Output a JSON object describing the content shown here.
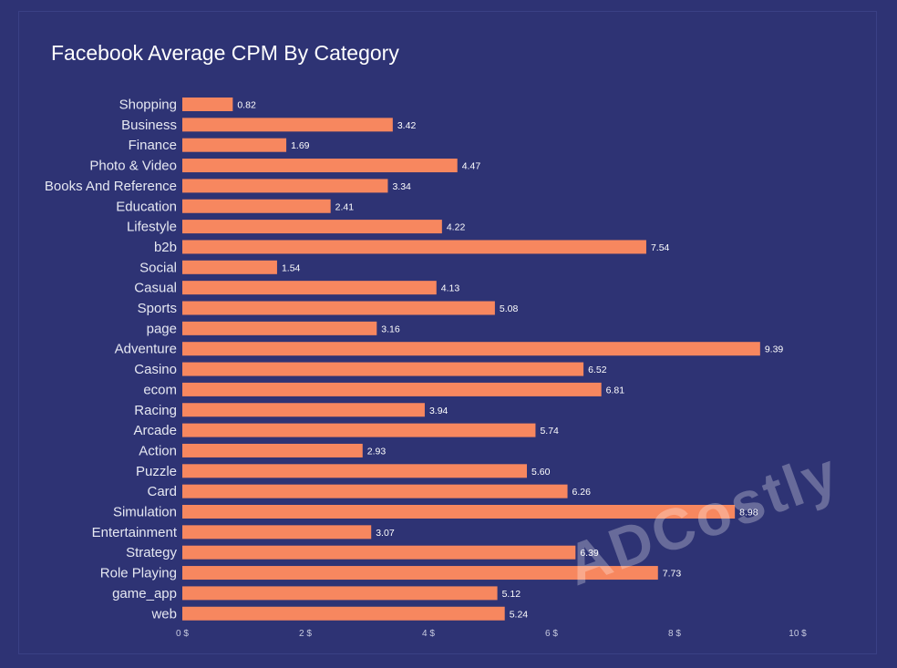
{
  "chart_data": {
    "type": "bar",
    "orientation": "horizontal",
    "title": "Facebook Average CPM By Category",
    "categories": [
      "Shopping",
      "Business",
      "Finance",
      "Photo & Video",
      "Books And Reference",
      "Education",
      "Lifestyle",
      "b2b",
      "Social",
      "Casual",
      "Sports",
      "page",
      "Adventure",
      "Casino",
      "ecom",
      "Racing",
      "Arcade",
      "Action",
      "Puzzle",
      "Card",
      "Simulation",
      "Entertainment",
      "Strategy",
      "Role Playing",
      "game_app",
      "web"
    ],
    "values": [
      0.82,
      3.42,
      1.69,
      4.47,
      3.34,
      2.41,
      4.22,
      7.54,
      1.54,
      4.13,
      5.08,
      3.16,
      9.39,
      6.52,
      6.81,
      3.94,
      5.74,
      2.93,
      5.6,
      6.26,
      8.98,
      3.07,
      6.39,
      7.73,
      5.12,
      5.24
    ],
    "value_labels": [
      "0.82",
      "3.42",
      "1.69",
      "4.47",
      "3.34",
      "2.41",
      "4.22",
      "7.54",
      "1.54",
      "4.13",
      "5.08",
      "3.16",
      "9.39",
      "6.52",
      "6.81",
      "3.94",
      "5.74",
      "2.93",
      "5.60",
      "6.26",
      "8.98",
      "3.07",
      "6.39",
      "7.73",
      "5.12",
      "5.24"
    ],
    "xlim": [
      0,
      10
    ],
    "xticks": [
      0,
      2,
      4,
      6,
      8,
      10
    ],
    "xtick_labels": [
      "0 $",
      "2 $",
      "4 $",
      "6 $",
      "8 $",
      "10 $"
    ],
    "xlabel": "",
    "ylabel": "",
    "grid": false,
    "legend": "none"
  },
  "watermark": "ADCostly",
  "colors": {
    "background": "#2e3374",
    "bar": "#f7875f",
    "text": "#ffffff"
  }
}
